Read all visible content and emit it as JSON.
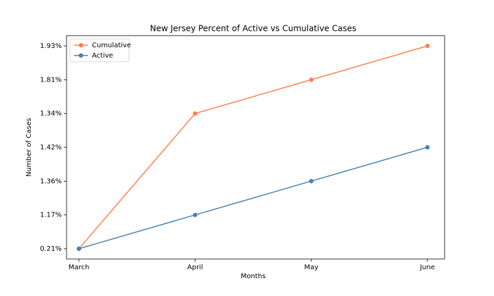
{
  "chart_data": {
    "type": "line",
    "title": "New Jersey Percent of Active vs Cumulative Cases",
    "x_label": "Months",
    "y_label": "Number of Cases",
    "categories": [
      "March",
      "April",
      "May",
      "June"
    ],
    "y_categories": [
      "0.21%",
      "1.17%",
      "1.36%",
      "1.42%",
      "1.34%",
      "1.81%",
      "1.93%"
    ],
    "series": [
      {
        "name": "Cumulative",
        "color": "#ff7f50",
        "values": [
          "0.21%",
          "1.34%",
          "1.81%",
          "1.93%"
        ]
      },
      {
        "name": "Active",
        "color": "#4682b4",
        "values": [
          "0.21%",
          "1.17%",
          "1.36%",
          "1.42%"
        ]
      }
    ],
    "legend": "upper left"
  }
}
